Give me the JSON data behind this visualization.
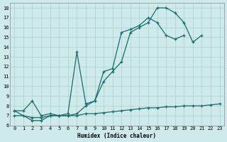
{
  "xlabel": "Humidex (Indice chaleur)",
  "xlim": [
    -0.5,
    23.5
  ],
  "ylim": [
    6,
    18.5
  ],
  "xticks": [
    0,
    1,
    2,
    3,
    4,
    5,
    6,
    7,
    8,
    9,
    10,
    11,
    12,
    13,
    14,
    15,
    16,
    17,
    18,
    19,
    20,
    21,
    22,
    23
  ],
  "yticks": [
    6,
    7,
    8,
    9,
    10,
    11,
    12,
    13,
    14,
    15,
    16,
    17,
    18
  ],
  "bg_color": "#ceeaea",
  "line_color": "#1a6b6b",
  "grid_color": "#aacfcf",
  "line1_x": [
    0,
    1,
    2,
    3,
    4,
    5,
    6,
    7,
    8,
    9,
    10,
    11,
    12,
    13,
    14,
    15,
    16,
    17,
    18,
    19,
    20,
    21
  ],
  "line1_y": [
    7.5,
    7.5,
    8.5,
    7.0,
    7.2,
    7.0,
    7.0,
    7.2,
    8.0,
    8.5,
    10.5,
    11.5,
    12.5,
    15.5,
    16.0,
    16.5,
    18.0,
    18.0,
    17.5,
    16.5,
    14.5,
    15.2
  ],
  "line2_x": [
    0,
    2,
    3,
    4,
    5,
    6,
    7,
    8,
    9,
    10,
    11,
    12,
    13,
    14,
    15,
    16,
    17,
    18,
    19
  ],
  "line2_y": [
    7.5,
    6.5,
    6.5,
    7.0,
    7.0,
    7.2,
    13.5,
    8.2,
    8.5,
    11.5,
    11.8,
    15.5,
    15.8,
    16.2,
    17.0,
    16.5,
    15.2,
    14.8,
    15.2
  ],
  "line3_x": [
    0,
    1,
    2,
    3,
    4,
    5,
    6,
    7,
    8,
    9,
    10,
    11,
    12,
    13,
    14,
    15,
    16,
    17,
    18,
    19,
    20,
    21,
    22,
    23
  ],
  "line3_y": [
    7.0,
    7.0,
    6.8,
    6.8,
    7.0,
    7.0,
    7.0,
    7.0,
    7.2,
    7.2,
    7.3,
    7.4,
    7.5,
    7.6,
    7.7,
    7.8,
    7.8,
    7.9,
    7.9,
    8.0,
    8.0,
    8.0,
    8.1,
    8.2
  ]
}
